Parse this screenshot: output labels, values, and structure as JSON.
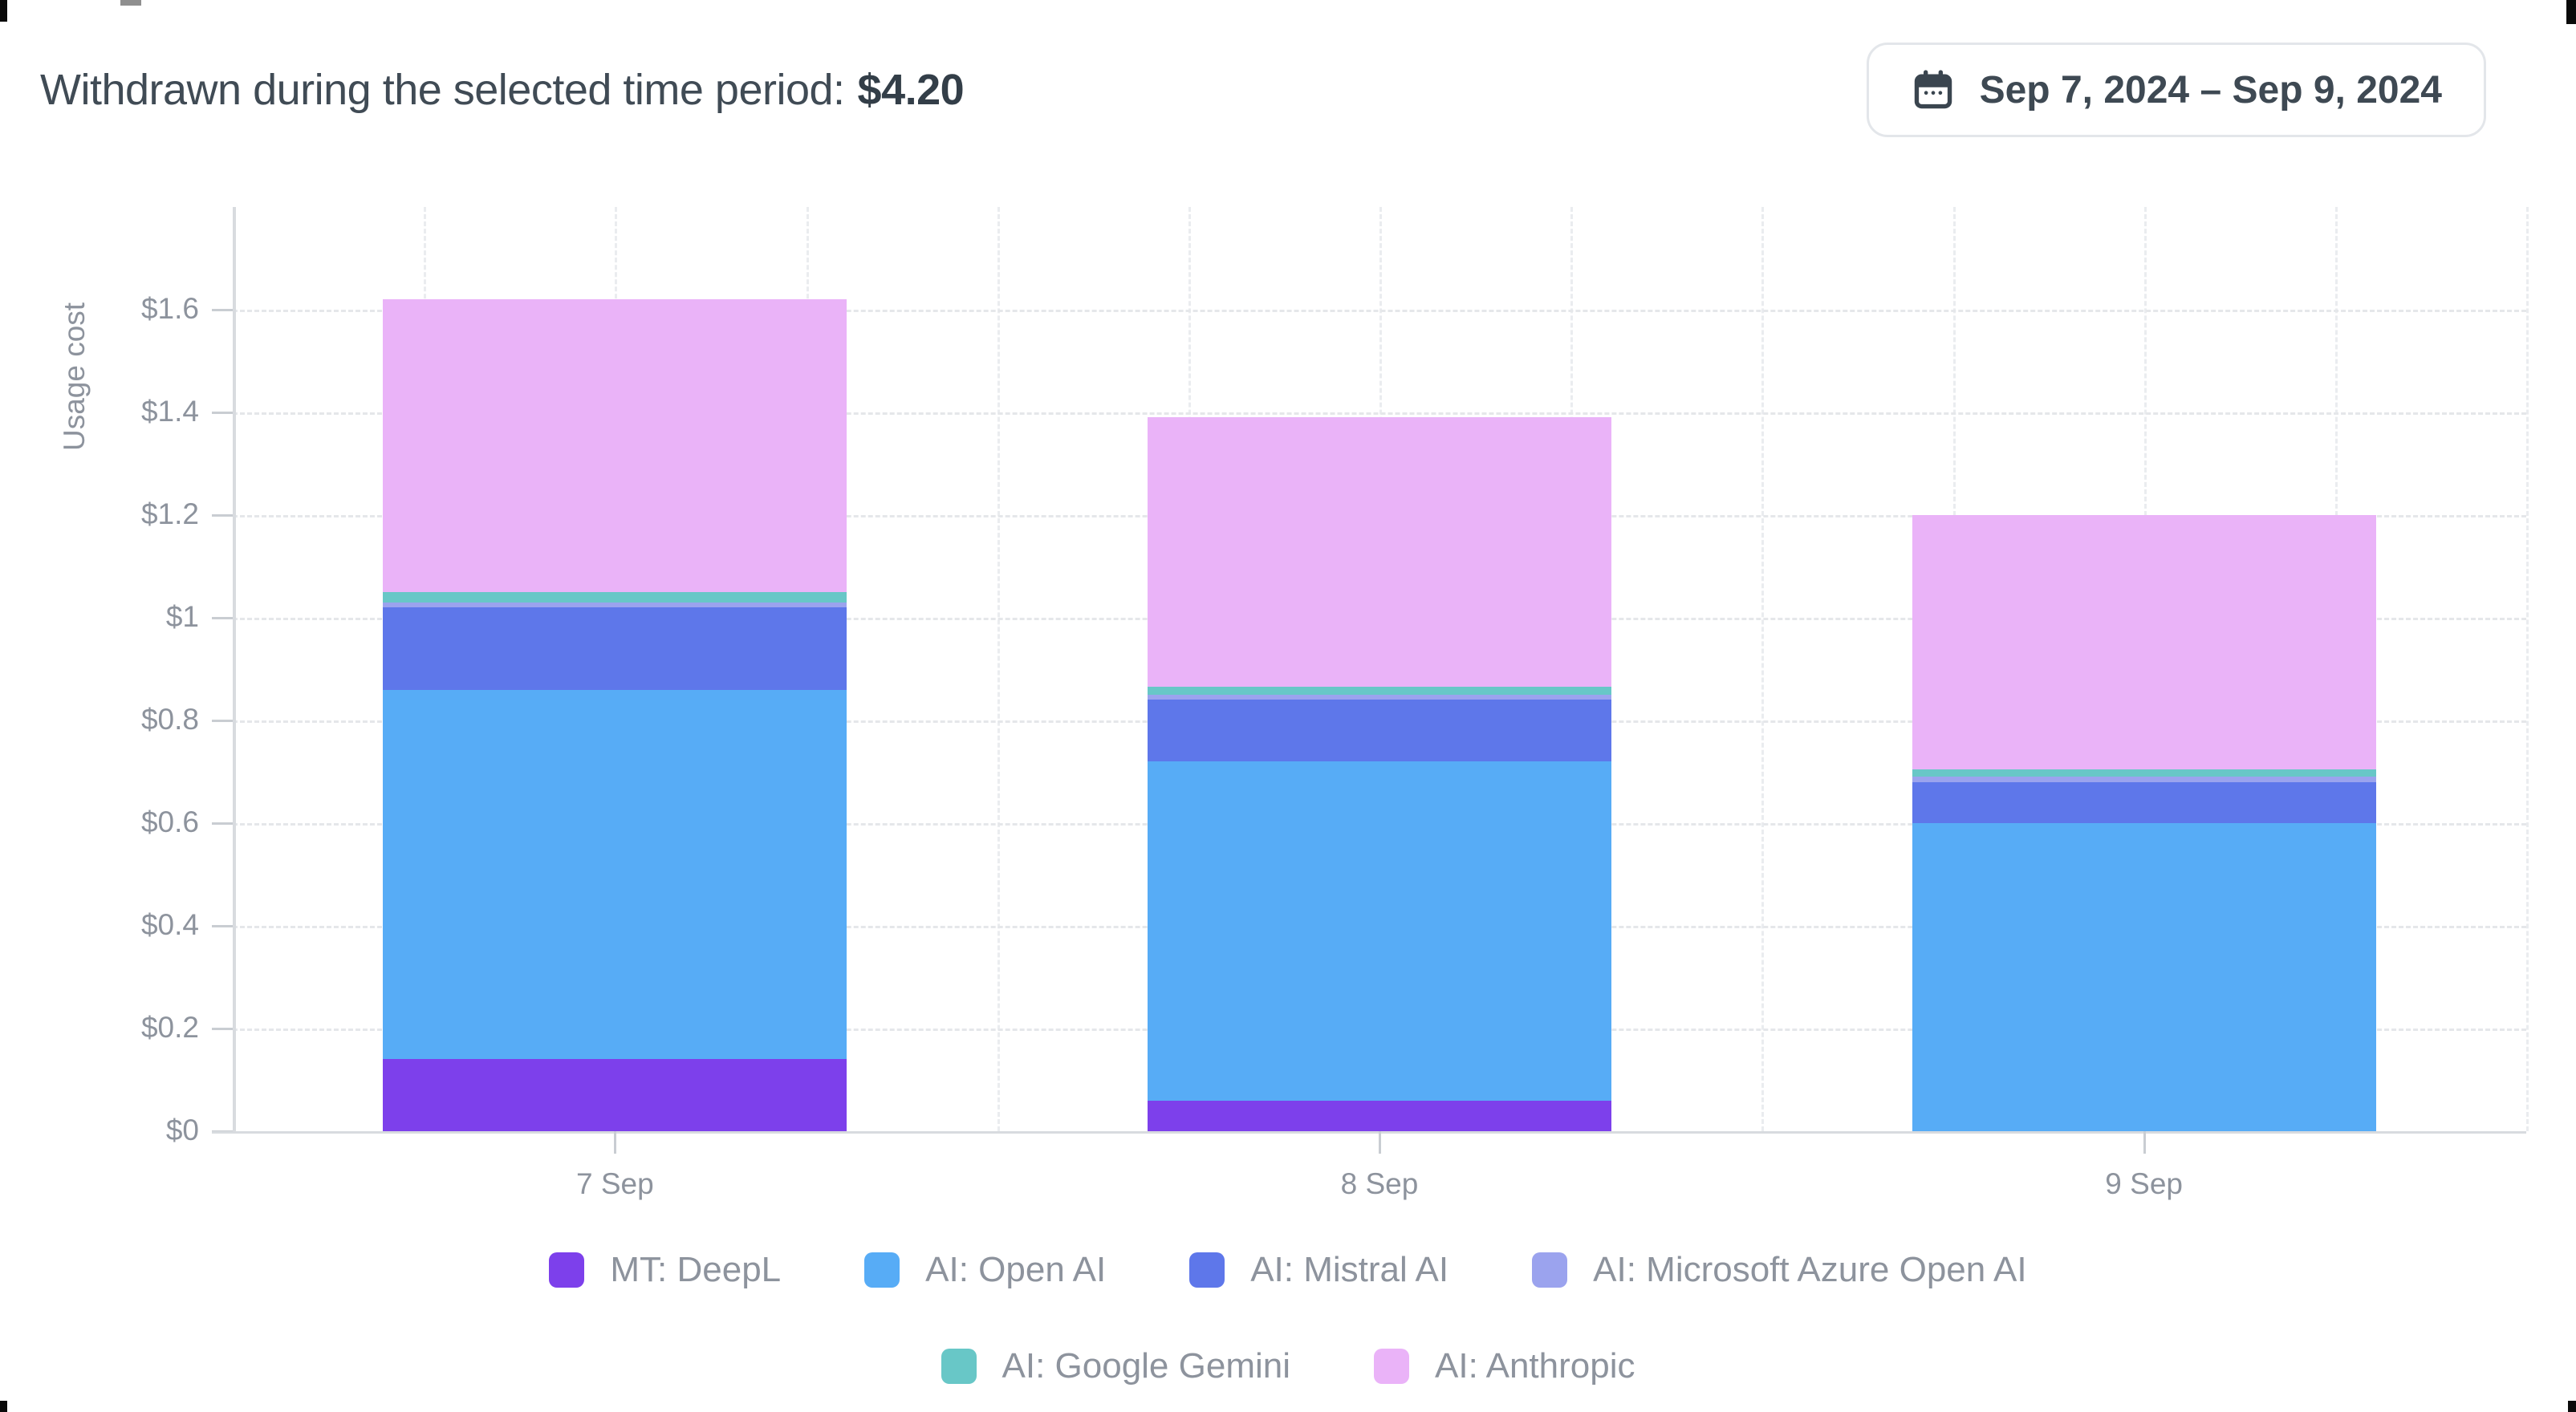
{
  "header": {
    "title": "Withdrawn during the selected time period:",
    "amount": "$4.20"
  },
  "date_picker": {
    "label": "Sep 7, 2024 – Sep 9, 2024",
    "icon": "calendar-icon"
  },
  "chart_data": {
    "type": "bar",
    "variant": "stacked",
    "title": "",
    "xlabel": "",
    "ylabel": "Usage cost",
    "categories": [
      "7 Sep",
      "8 Sep",
      "9 Sep"
    ],
    "y_ticks": [
      "$0",
      "$0.2",
      "$0.4",
      "$0.6",
      "$0.8",
      "$1",
      "$1.2",
      "$1.4",
      "$1.6"
    ],
    "y_tick_values": [
      0,
      0.2,
      0.4,
      0.6,
      0.8,
      1.0,
      1.2,
      1.4,
      1.6
    ],
    "ylim": [
      0,
      1.8
    ],
    "grid": "dashed horizontal and vertical gridlines",
    "legend_position": "bottom",
    "series": [
      {
        "name": "MT: DeepL",
        "color": "#7d40eb",
        "values": [
          0.14,
          0.06,
          0
        ]
      },
      {
        "name": "AI: Open AI",
        "color": "#57acf6",
        "values": [
          0.72,
          0.66,
          0.6
        ]
      },
      {
        "name": "AI: Mistral AI",
        "color": "#5e77ea",
        "values": [
          0.16,
          0.12,
          0.08
        ]
      },
      {
        "name": "AI: Microsoft Azure Open AI",
        "color": "#9ba3ee",
        "values": [
          0.01,
          0.01,
          0.01
        ]
      },
      {
        "name": "AI: Google Gemini",
        "color": "#68c7c7",
        "values": [
          0.02,
          0.015,
          0.015
        ]
      },
      {
        "name": "AI: Anthropic",
        "color": "#eab3f8",
        "values": [
          0.57,
          0.525,
          0.495
        ]
      }
    ],
    "stack_totals": [
      1.62,
      1.39,
      1.2
    ]
  },
  "legend": {
    "rows": [
      [
        "MT: DeepL",
        "AI: Open AI",
        "AI: Mistral AI",
        "AI: Microsoft Azure Open AI"
      ],
      [
        "AI: Google Gemini",
        "AI: Anthropic"
      ]
    ]
  },
  "colors": {
    "text_dark": "#404b55",
    "text_gray": "#8d939d",
    "grid": "#e5e7ea",
    "axis": "#d8dbdf",
    "button_border": "#e3e6ea"
  }
}
